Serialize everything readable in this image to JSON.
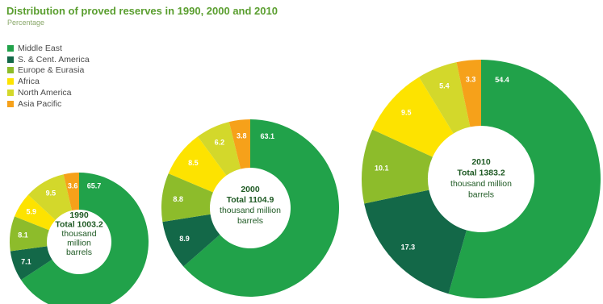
{
  "title": "Distribution of proved reserves in 1990, 2000 and 2010",
  "subtitle": "Percentage",
  "colors": {
    "Middle East": "#21a24a",
    "S. & Cent. America": "#136848",
    "Europe & Eurasia": "#8dbc2b",
    "Africa": "#fde300",
    "North America": "#d3d82b",
    "Asia Pacific": "#f6a11a"
  },
  "chart_data": {
    "type": "pie",
    "categories": [
      "Middle East",
      "S. & Cent. America",
      "Europe & Eurasia",
      "Africa",
      "North America",
      "Asia Pacific"
    ],
    "legend_position": "top-left",
    "series": [
      {
        "name": "1990",
        "values": [
          65.7,
          7.1,
          8.1,
          5.9,
          9.5,
          3.6
        ],
        "labels": [
          "65.7",
          "7.1",
          "8.1",
          "5.9",
          "9.5",
          "3.6"
        ],
        "center": [
          "1990",
          "Total 1003.2",
          "thousand",
          "million",
          "barrels"
        ]
      },
      {
        "name": "2000",
        "values": [
          63.1,
          8.9,
          8.8,
          8.5,
          6.2,
          3.8
        ],
        "labels": [
          "63.1",
          "8.9",
          "8.8",
          "8.5",
          "6.2",
          "3.8"
        ],
        "center": [
          "2000",
          "Total 1104.9",
          "thousand million",
          "barrels"
        ]
      },
      {
        "name": "2010",
        "values": [
          54.4,
          17.3,
          10.1,
          9.5,
          5.4,
          3.3
        ],
        "labels": [
          "54.4",
          "17.3",
          "10.1",
          "9.5",
          "5.4",
          "3.3"
        ],
        "center": [
          "2010",
          "Total 1383.2",
          "thousand million",
          "barrels"
        ]
      }
    ]
  }
}
